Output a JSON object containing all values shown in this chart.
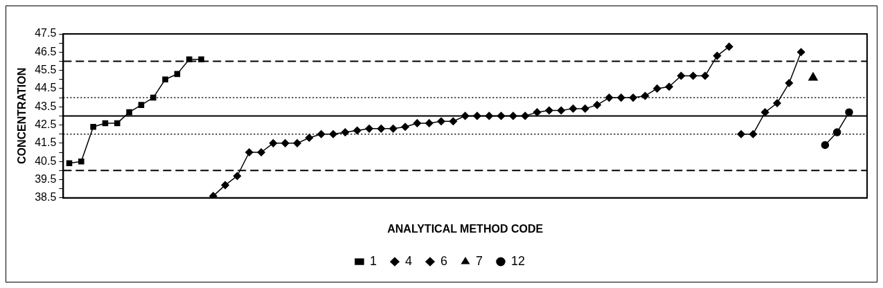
{
  "chart_data": {
    "type": "line",
    "xlabel": "ANALYTICAL METHOD CODE",
    "ylabel": "CONCENTRATION",
    "categories": [
      null,
      null,
      null,
      null,
      null,
      null,
      null,
      null,
      null,
      null,
      null,
      null,
      null,
      null,
      null,
      null,
      null,
      null,
      null,
      null,
      null,
      null,
      null,
      null,
      null,
      null,
      null,
      null,
      null,
      null,
      null,
      null,
      null,
      null,
      null,
      null,
      null,
      null,
      null,
      null,
      null,
      null,
      null,
      null,
      null,
      null,
      null,
      null,
      null,
      null,
      null,
      null,
      null,
      null,
      null,
      null,
      null,
      null,
      null,
      null,
      null,
      null,
      null,
      null,
      null,
      null,
      null
    ],
    "ylim": [
      38.5,
      47.5
    ],
    "yticks": [
      38.5,
      {
        "value": 39,
        "label": null
      },
      39.5,
      {
        "value": 40,
        "label": null
      },
      40.5,
      {
        "value": 41,
        "label": null
      },
      41.5,
      {
        "value": 42,
        "label": null
      },
      42.5,
      {
        "value": 43,
        "label": null
      },
      43.5,
      {
        "value": 44,
        "label": null
      },
      44.5,
      {
        "value": 45,
        "label": null
      },
      45.5,
      {
        "value": 46,
        "label": null
      },
      46.5,
      {
        "value": 47,
        "label": null
      },
      47.5
    ],
    "tick_labels": "y",
    "legend": "bottom",
    "line_style": "solid",
    "series": [
      {
        "name": "1",
        "color": "#000000",
        "marker": "square",
        "values": [
          40.4,
          40.5,
          42.4,
          42.6,
          42.6,
          43.2,
          43.6,
          44.0,
          45.0,
          45.3,
          46.1,
          46.1,
          null,
          null,
          null,
          null,
          null,
          null,
          null,
          null,
          null,
          null,
          null,
          null,
          null,
          null,
          null,
          null,
          null,
          null,
          null,
          null,
          null,
          null,
          null,
          null,
          null,
          null,
          null,
          null,
          null,
          null,
          null,
          null,
          null,
          null,
          null,
          null,
          null,
          null,
          null,
          null,
          null,
          null,
          null,
          null,
          null,
          null,
          null,
          null,
          null,
          null,
          null,
          null,
          null,
          null,
          null
        ]
      },
      {
        "name": "4",
        "color": "#000000",
        "marker": "diamond",
        "values": [
          null,
          null,
          null,
          null,
          null,
          null,
          null,
          null,
          null,
          null,
          null,
          null,
          38.6,
          39.2,
          39.7,
          41.0,
          41.0,
          41.5,
          41.5,
          41.5,
          41.8,
          42.0,
          42.0,
          42.1,
          42.2,
          42.3,
          42.3,
          42.3,
          42.4,
          42.6,
          42.6,
          42.7,
          42.7,
          43.0,
          43.0,
          43.0,
          43.0,
          43.0,
          43.0,
          43.2,
          43.3,
          43.3,
          43.4,
          43.4,
          43.6,
          44.0,
          44.0,
          44.0,
          44.1,
          44.5,
          44.6,
          45.2,
          45.2,
          45.2,
          46.3,
          46.8,
          null,
          null,
          null,
          null,
          null,
          null,
          null,
          null,
          null,
          null,
          null
        ]
      },
      {
        "name": "6",
        "color": "#000000",
        "marker": "diamond",
        "values": [
          null,
          null,
          null,
          null,
          null,
          null,
          null,
          null,
          null,
          null,
          null,
          null,
          null,
          null,
          null,
          null,
          null,
          null,
          null,
          null,
          null,
          null,
          null,
          null,
          null,
          null,
          null,
          null,
          null,
          null,
          null,
          null,
          null,
          null,
          null,
          null,
          null,
          null,
          null,
          null,
          null,
          null,
          null,
          null,
          null,
          null,
          null,
          null,
          null,
          null,
          null,
          null,
          null,
          null,
          null,
          null,
          42.0,
          42.0,
          43.2,
          43.7,
          44.8,
          46.5,
          null,
          null,
          null,
          null,
          null
        ]
      },
      {
        "name": "7",
        "color": "#000000",
        "marker": "triangle",
        "values": [
          null,
          null,
          null,
          null,
          null,
          null,
          null,
          null,
          null,
          null,
          null,
          null,
          null,
          null,
          null,
          null,
          null,
          null,
          null,
          null,
          null,
          null,
          null,
          null,
          null,
          null,
          null,
          null,
          null,
          null,
          null,
          null,
          null,
          null,
          null,
          null,
          null,
          null,
          null,
          null,
          null,
          null,
          null,
          null,
          null,
          null,
          null,
          null,
          null,
          null,
          null,
          null,
          null,
          null,
          null,
          null,
          null,
          null,
          null,
          null,
          null,
          null,
          45.1,
          null,
          null,
          null,
          null
        ]
      },
      {
        "name": "12",
        "color": "#000000",
        "marker": "circle",
        "values": [
          null,
          null,
          null,
          null,
          null,
          null,
          null,
          null,
          null,
          null,
          null,
          null,
          null,
          null,
          null,
          null,
          null,
          null,
          null,
          null,
          null,
          null,
          null,
          null,
          null,
          null,
          null,
          null,
          null,
          null,
          null,
          null,
          null,
          null,
          null,
          null,
          null,
          null,
          null,
          null,
          null,
          null,
          null,
          null,
          null,
          null,
          null,
          null,
          null,
          null,
          null,
          null,
          null,
          null,
          null,
          null,
          null,
          null,
          null,
          null,
          null,
          null,
          null,
          41.4,
          42.1,
          43.2,
          null
        ]
      }
    ],
    "ref_lines": [
      {
        "axis": "y",
        "value": 46,
        "line_style": "dashed"
      },
      {
        "axis": "y",
        "value": 44,
        "line_style": "dotted"
      },
      {
        "axis": "y",
        "value": 43,
        "line_style": "solid"
      },
      {
        "axis": "y",
        "value": 42,
        "line_style": "dotted"
      },
      {
        "axis": "y",
        "value": 40,
        "line_style": "dashed"
      }
    ]
  }
}
